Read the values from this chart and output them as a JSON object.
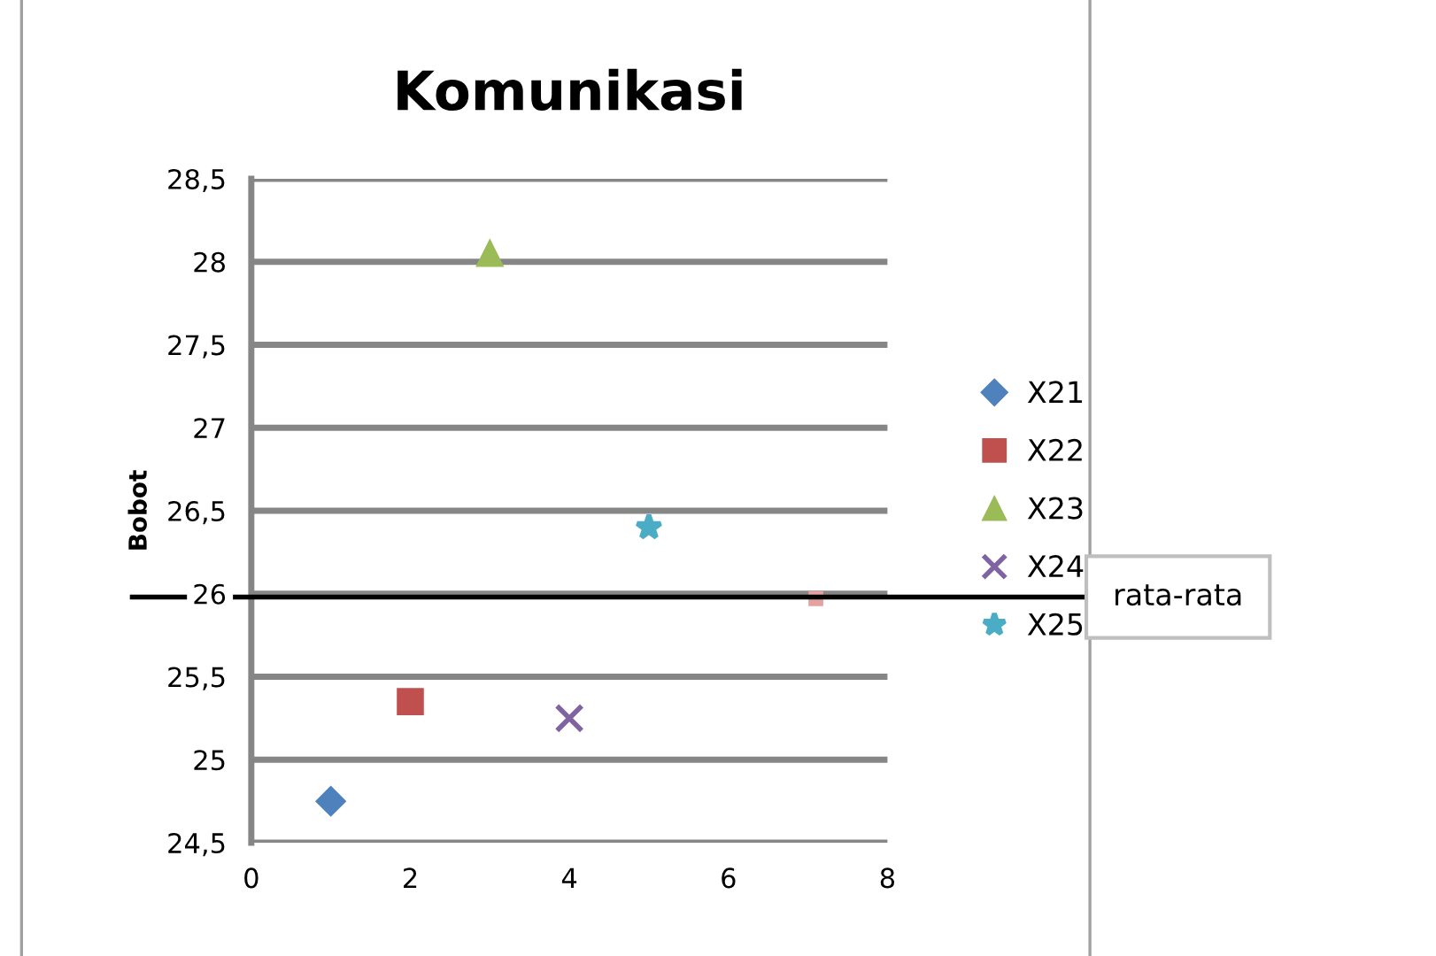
{
  "chart_data": {
    "type": "scatter",
    "title": "Komunikasi",
    "ylabel": "Bobot",
    "xlim": [
      0,
      8
    ],
    "xticks": [
      0,
      2,
      4,
      6,
      8
    ],
    "ylim": [
      24.5,
      28.5
    ],
    "yticks": [
      {
        "value": 24.5,
        "label": "24,5"
      },
      {
        "value": 25,
        "label": "25"
      },
      {
        "value": 25.5,
        "label": "25,5"
      },
      {
        "value": 26,
        "label": "26"
      },
      {
        "value": 26.5,
        "label": "26,5"
      },
      {
        "value": 27,
        "label": "27"
      },
      {
        "value": 27.5,
        "label": "27,5"
      },
      {
        "value": 28,
        "label": "28"
      },
      {
        "value": 28.5,
        "label": "28,5"
      }
    ],
    "grid": "y",
    "legend": "right",
    "series": [
      {
        "name": "X21",
        "color": "#4f81bd",
        "marker": "diamond",
        "x": [
          1
        ],
        "values": [
          24.75
        ]
      },
      {
        "name": "X22",
        "color": "#c0504d",
        "marker": "square",
        "x": [
          2
        ],
        "values": [
          25.35
        ]
      },
      {
        "name": "X23",
        "color": "#9bbb59",
        "marker": "triangle",
        "x": [
          3
        ],
        "values": [
          28.05
        ]
      },
      {
        "name": "X24",
        "color": "#8064a2",
        "marker": "cross",
        "x": [
          4
        ],
        "values": [
          25.25
        ]
      },
      {
        "name": "X25",
        "color": "#4bacc6",
        "marker": "star",
        "x": [
          5
        ],
        "values": [
          26.4
        ]
      },
      {
        "color": "#e6a0a0",
        "marker": "square",
        "x": [
          7.1
        ],
        "values": [
          25.97
        ]
      }
    ],
    "ref_lines": [
      {
        "axis": "y",
        "value": 25.98,
        "label": "rata-rata",
        "color": "#000000"
      }
    ]
  }
}
